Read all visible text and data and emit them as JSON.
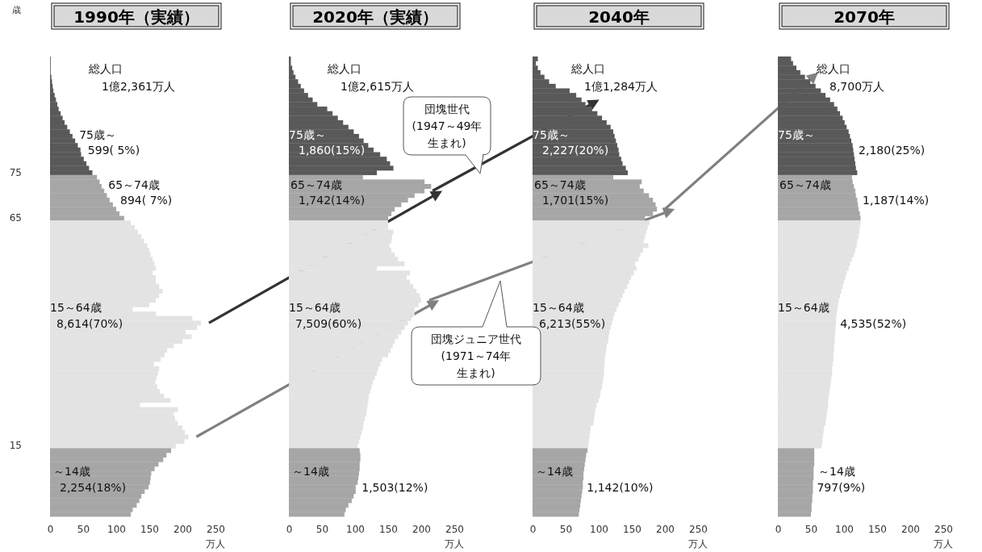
{
  "chart_data": [
    {
      "type": "bar",
      "orientation": "horizontal",
      "title": "1990年（実績）",
      "ylabel": "歳",
      "xlabel": "万人",
      "xlim": [
        0,
        250
      ],
      "xticks": [
        0,
        50,
        100,
        150,
        200,
        250
      ],
      "categories": [
        null,
        null,
        null,
        null,
        null,
        null,
        null,
        null,
        null,
        null,
        null,
        null,
        null,
        null,
        null,
        null,
        null,
        null,
        null,
        null,
        null,
        null,
        null,
        null,
        null,
        "75",
        null,
        null,
        null,
        null,
        null,
        null,
        null,
        null,
        null,
        "65",
        null,
        null,
        null,
        null,
        null,
        null,
        null,
        null,
        null,
        null,
        null,
        null,
        null,
        null,
        null,
        null,
        null,
        null,
        null,
        null,
        null,
        null,
        null,
        null,
        null,
        null,
        null,
        null,
        null,
        null,
        null,
        null,
        null,
        null,
        null,
        null,
        null,
        null,
        null,
        null,
        null,
        null,
        null,
        null,
        null,
        null,
        null,
        null,
        null,
        "15",
        null,
        null,
        null,
        null,
        null,
        null,
        null,
        null,
        null,
        null,
        null,
        null,
        null,
        null,
        null
      ],
      "values": [
        1,
        1,
        1,
        1,
        2,
        3,
        4,
        5,
        7,
        9,
        11,
        13,
        16,
        19,
        22,
        26,
        30,
        34,
        38,
        42,
        46,
        47,
        51,
        55,
        59,
        64,
        71,
        75,
        78,
        82,
        86,
        90,
        95,
        100,
        105,
        112,
        122,
        128,
        133,
        138,
        142,
        147,
        150,
        152,
        155,
        158,
        160,
        155,
        160,
        160,
        165,
        170,
        165,
        160,
        150,
        125,
        160,
        215,
        228,
        222,
        205,
        214,
        200,
        187,
        177,
        173,
        167,
        157,
        165,
        163,
        161,
        159,
        162,
        166,
        172,
        182,
        136,
        193,
        187,
        189,
        193,
        200,
        204,
        209,
        203,
        190,
        183,
        176,
        171,
        164,
        158,
        153,
        152,
        151,
        149,
        143,
        138,
        135,
        131,
        125,
        122
      ],
      "colors": [
        "#595959",
        "#595959",
        "#595959",
        "#595959",
        "#595959",
        "#595959",
        "#595959",
        "#595959",
        "#595959",
        "#595959",
        "#595959",
        "#595959",
        "#595959",
        "#595959",
        "#595959",
        "#595959",
        "#595959",
        "#595959",
        "#595959",
        "#595959",
        "#595959",
        "#595959",
        "#595959",
        "#595959",
        "#595959",
        "#595959",
        "#a6a6a6",
        "#a6a6a6",
        "#a6a6a6",
        "#a6a6a6",
        "#a6a6a6",
        "#a6a6a6",
        "#a6a6a6",
        "#a6a6a6",
        "#a6a6a6",
        "#a6a6a6",
        "#e3e3e3",
        "#e3e3e3",
        "#e3e3e3",
        "#e3e3e3",
        "#e3e3e3",
        "#e3e3e3",
        "#e3e3e3",
        "#e3e3e3",
        "#e3e3e3",
        "#e3e3e3",
        "#e3e3e3",
        "#e3e3e3",
        "#e3e3e3",
        "#e3e3e3",
        "#e3e3e3",
        "#e3e3e3",
        "#e3e3e3",
        "#e3e3e3",
        "#e3e3e3",
        "#e3e3e3",
        "#e3e3e3",
        "#e3e3e3",
        "#e3e3e3",
        "#e3e3e3",
        "#e3e3e3",
        "#e3e3e3",
        "#e3e3e3",
        "#e3e3e3",
        "#e3e3e3",
        "#e3e3e3",
        "#e3e3e3",
        "#e3e3e3",
        "#e3e3e3",
        "#e3e3e3",
        "#e3e3e3",
        "#e3e3e3",
        "#e3e3e3",
        "#e3e3e3",
        "#e3e3e3",
        "#e3e3e3",
        "#e3e3e3",
        "#e3e3e3",
        "#e3e3e3",
        "#e3e3e3",
        "#e3e3e3",
        "#e3e3e3",
        "#e3e3e3",
        "#e3e3e3",
        "#e3e3e3",
        "#e3e3e3",
        "#a6a6a6",
        "#a6a6a6",
        "#a6a6a6",
        "#a6a6a6",
        "#a6a6a6",
        "#a6a6a6",
        "#a6a6a6",
        "#a6a6a6",
        "#a6a6a6",
        "#a6a6a6",
        "#a6a6a6",
        "#a6a6a6",
        "#a6a6a6",
        "#a6a6a6",
        "#a6a6a6"
      ],
      "annotations": [
        "総人口",
        "1億2,361万人",
        "75歳～",
        "599( 5%)",
        "65～74歳",
        "894( 7%)",
        "15～64歳",
        "8,614(70%)",
        "～14歳",
        "2,254(18%)"
      ]
    },
    {
      "type": "bar",
      "orientation": "horizontal",
      "title": "2020年（実績）",
      "xlabel": "万人",
      "xlim": [
        0,
        250
      ],
      "xticks": [
        0,
        50,
        100,
        150,
        200,
        250
      ],
      "tick_labels": "x",
      "categories": [
        null,
        null,
        null,
        null,
        null,
        null,
        null,
        null,
        null,
        null,
        null,
        null,
        null,
        null,
        null,
        null,
        null,
        null,
        null,
        null,
        null,
        null,
        null,
        null,
        null,
        null,
        null,
        null,
        null,
        null,
        null,
        null,
        null,
        null,
        null,
        null,
        null,
        null,
        null,
        null,
        null,
        null,
        null,
        null,
        null,
        null,
        null,
        null,
        null,
        null,
        null,
        null,
        null,
        null,
        null,
        null,
        null,
        null,
        null,
        null,
        null,
        null,
        null,
        null,
        null,
        null,
        null,
        null,
        null,
        null,
        null,
        null,
        null,
        null,
        null,
        null,
        null,
        null,
        null,
        null,
        null,
        null,
        null,
        null,
        null,
        null,
        null,
        null,
        null,
        null,
        null,
        null,
        null,
        null,
        null,
        null,
        null,
        null,
        null,
        null,
        null
      ],
      "values": [
        3,
        3,
        5,
        7,
        10,
        14,
        18,
        23,
        29,
        36,
        43,
        58,
        66,
        74,
        82,
        90,
        98,
        106,
        113,
        120,
        128,
        138,
        148,
        153,
        158,
        133,
        112,
        205,
        215,
        205,
        190,
        180,
        170,
        160,
        155,
        150,
        150,
        150,
        158,
        156,
        155,
        152,
        155,
        160,
        165,
        175,
        133,
        183,
        178,
        183,
        188,
        193,
        198,
        200,
        196,
        190,
        190,
        185,
        180,
        175,
        170,
        165,
        160,
        157,
        154,
        150,
        141,
        138,
        135,
        133,
        130,
        127,
        125,
        123,
        121,
        120,
        119,
        118,
        117,
        115,
        113,
        112,
        110,
        108,
        106,
        104,
        107,
        108,
        108,
        107,
        107,
        106,
        105,
        104,
        101,
        101,
        98,
        95,
        90,
        86,
        84
      ],
      "colors": [
        "#595959",
        "#595959",
        "#595959",
        "#595959",
        "#595959",
        "#595959",
        "#595959",
        "#595959",
        "#595959",
        "#595959",
        "#595959",
        "#595959",
        "#595959",
        "#595959",
        "#595959",
        "#595959",
        "#595959",
        "#595959",
        "#595959",
        "#595959",
        "#595959",
        "#595959",
        "#595959",
        "#595959",
        "#595959",
        "#595959",
        "#a6a6a6",
        "#a6a6a6",
        "#a6a6a6",
        "#a6a6a6",
        "#a6a6a6",
        "#a6a6a6",
        "#a6a6a6",
        "#a6a6a6",
        "#a6a6a6",
        "#a6a6a6",
        "#e3e3e3",
        "#e3e3e3",
        "#e3e3e3",
        "#e3e3e3",
        "#e3e3e3",
        "#e3e3e3",
        "#e3e3e3",
        "#e3e3e3",
        "#e3e3e3",
        "#e3e3e3",
        "#e3e3e3",
        "#e3e3e3",
        "#e3e3e3",
        "#e3e3e3",
        "#e3e3e3",
        "#e3e3e3",
        "#e3e3e3",
        "#e3e3e3",
        "#e3e3e3",
        "#e3e3e3",
        "#e3e3e3",
        "#e3e3e3",
        "#e3e3e3",
        "#e3e3e3",
        "#e3e3e3",
        "#e3e3e3",
        "#e3e3e3",
        "#e3e3e3",
        "#e3e3e3",
        "#e3e3e3",
        "#e3e3e3",
        "#e3e3e3",
        "#e3e3e3",
        "#e3e3e3",
        "#e3e3e3",
        "#e3e3e3",
        "#e3e3e3",
        "#e3e3e3",
        "#e3e3e3",
        "#e3e3e3",
        "#e3e3e3",
        "#e3e3e3",
        "#e3e3e3",
        "#e3e3e3",
        "#e3e3e3",
        "#e3e3e3",
        "#e3e3e3",
        "#e3e3e3",
        "#e3e3e3",
        "#e3e3e3",
        "#a6a6a6",
        "#a6a6a6",
        "#a6a6a6",
        "#a6a6a6",
        "#a6a6a6",
        "#a6a6a6",
        "#a6a6a6",
        "#a6a6a6",
        "#a6a6a6",
        "#a6a6a6",
        "#a6a6a6",
        "#a6a6a6",
        "#a6a6a6",
        "#a6a6a6",
        "#a6a6a6"
      ],
      "annotations": [
        "総人口",
        "1億2,615万人",
        "75歳～",
        "1,860(15%)",
        "65～74歳",
        "1,742(14%)",
        "15～64歳",
        "7,509(60%)",
        "～14歳",
        "1,503(12%)",
        "団塊世代",
        "(1947～49年",
        "生まれ)"
      ]
    },
    {
      "type": "bar",
      "orientation": "horizontal",
      "title": "2040年",
      "xlabel": "万人",
      "xlim": [
        0,
        250
      ],
      "xticks": [
        0,
        50,
        100,
        150,
        200,
        250
      ],
      "tick_labels": "x",
      "categories": [
        null,
        null,
        null,
        null,
        null,
        null,
        null,
        null,
        null,
        null,
        null,
        null,
        null,
        null,
        null,
        null,
        null,
        null,
        null,
        null,
        null,
        null,
        null,
        null,
        null,
        null,
        null,
        null,
        null,
        null,
        null,
        null,
        null,
        null,
        null,
        null,
        null,
        null,
        null,
        null,
        null,
        null,
        null,
        null,
        null,
        null,
        null,
        null,
        null,
        null,
        null,
        null,
        null,
        null,
        null,
        null,
        null,
        null,
        null,
        null,
        null,
        null,
        null,
        null,
        null,
        null,
        null,
        null,
        null,
        null,
        null,
        null,
        null,
        null,
        null,
        null,
        null,
        null,
        null,
        null,
        null,
        null,
        null,
        null,
        null,
        null,
        null,
        null,
        null,
        null,
        null,
        null,
        null,
        null,
        null,
        null,
        null,
        null,
        null,
        null,
        null
      ],
      "values": [
        8,
        5,
        8,
        12,
        18,
        25,
        35,
        56,
        66,
        74,
        80,
        90,
        98,
        105,
        112,
        118,
        122,
        124,
        126,
        128,
        130,
        131,
        134,
        136,
        141,
        144,
        122,
        165,
        162,
        168,
        176,
        182,
        186,
        188,
        182,
        170,
        177,
        174,
        172,
        170,
        168,
        175,
        167,
        163,
        160,
        155,
        157,
        153,
        149,
        146,
        143,
        139,
        136,
        133,
        130,
        127,
        124,
        122,
        120,
        118,
        116,
        115,
        114,
        112,
        111,
        110,
        109,
        109,
        108,
        108,
        107,
        106,
        105,
        103,
        102,
        100,
        97,
        95,
        94,
        93,
        92,
        88,
        87,
        86,
        85,
        84,
        83,
        81,
        80,
        79,
        78,
        77,
        77,
        76,
        76,
        75,
        74,
        73,
        72,
        71,
        70
      ],
      "colors": [
        "#595959",
        "#595959",
        "#595959",
        "#595959",
        "#595959",
        "#595959",
        "#595959",
        "#595959",
        "#595959",
        "#595959",
        "#595959",
        "#595959",
        "#595959",
        "#595959",
        "#595959",
        "#595959",
        "#595959",
        "#595959",
        "#595959",
        "#595959",
        "#595959",
        "#595959",
        "#595959",
        "#595959",
        "#595959",
        "#595959",
        "#a6a6a6",
        "#a6a6a6",
        "#a6a6a6",
        "#a6a6a6",
        "#a6a6a6",
        "#a6a6a6",
        "#a6a6a6",
        "#a6a6a6",
        "#a6a6a6",
        "#a6a6a6",
        "#e3e3e3",
        "#e3e3e3",
        "#e3e3e3",
        "#e3e3e3",
        "#e3e3e3",
        "#e3e3e3",
        "#e3e3e3",
        "#e3e3e3",
        "#e3e3e3",
        "#e3e3e3",
        "#e3e3e3",
        "#e3e3e3",
        "#e3e3e3",
        "#e3e3e3",
        "#e3e3e3",
        "#e3e3e3",
        "#e3e3e3",
        "#e3e3e3",
        "#e3e3e3",
        "#e3e3e3",
        "#e3e3e3",
        "#e3e3e3",
        "#e3e3e3",
        "#e3e3e3",
        "#e3e3e3",
        "#e3e3e3",
        "#e3e3e3",
        "#e3e3e3",
        "#e3e3e3",
        "#e3e3e3",
        "#e3e3e3",
        "#e3e3e3",
        "#e3e3e3",
        "#e3e3e3",
        "#e3e3e3",
        "#e3e3e3",
        "#e3e3e3",
        "#e3e3e3",
        "#e3e3e3",
        "#e3e3e3",
        "#e3e3e3",
        "#e3e3e3",
        "#e3e3e3",
        "#e3e3e3",
        "#e3e3e3",
        "#e3e3e3",
        "#e3e3e3",
        "#e3e3e3",
        "#e3e3e3",
        "#e3e3e3",
        "#a6a6a6",
        "#a6a6a6",
        "#a6a6a6",
        "#a6a6a6",
        "#a6a6a6",
        "#a6a6a6",
        "#a6a6a6",
        "#a6a6a6",
        "#a6a6a6",
        "#a6a6a6",
        "#a6a6a6",
        "#a6a6a6",
        "#a6a6a6",
        "#a6a6a6",
        "#a6a6a6"
      ],
      "annotations": [
        "総人口",
        "1億1,284万人",
        "75歳～",
        "2,227(20%)",
        "65～74歳",
        "1,701(15%)",
        "15～64歳",
        "6,213(55%)",
        "～14歳",
        "1,142(10%)",
        "団塊ジュニア世代",
        "(1971～74年",
        "生まれ)"
      ]
    },
    {
      "type": "bar",
      "orientation": "horizontal",
      "title": "2070年",
      "xlabel": "万人",
      "xlim": [
        0,
        250
      ],
      "xticks": [
        0,
        50,
        100,
        150,
        200,
        250
      ],
      "tick_labels": "x",
      "categories": [
        null,
        null,
        null,
        null,
        null,
        null,
        null,
        null,
        null,
        null,
        null,
        null,
        null,
        null,
        null,
        null,
        null,
        null,
        null,
        null,
        null,
        null,
        null,
        null,
        null,
        null,
        null,
        null,
        null,
        null,
        null,
        null,
        null,
        null,
        null,
        null,
        null,
        null,
        null,
        null,
        null,
        null,
        null,
        null,
        null,
        null,
        null,
        null,
        null,
        null,
        null,
        null,
        null,
        null,
        null,
        null,
        null,
        null,
        null,
        null,
        null,
        null,
        null,
        null,
        null,
        null,
        null,
        null,
        null,
        null,
        null,
        null,
        null,
        null,
        null,
        null,
        null,
        null,
        null,
        null,
        null,
        null,
        null,
        null,
        null,
        null,
        null,
        null,
        null,
        null,
        null,
        null,
        null,
        null,
        null,
        null,
        null,
        null,
        null,
        null,
        null
      ],
      "values": [
        20,
        23,
        28,
        34,
        41,
        49,
        57,
        65,
        72,
        79,
        85,
        90,
        94,
        98,
        101,
        104,
        107,
        109,
        111,
        113,
        114,
        115,
        116,
        117,
        118,
        120,
        112,
        113,
        115,
        117,
        118,
        120,
        121,
        122,
        124,
        125,
        125,
        124,
        123,
        122,
        120,
        119,
        117,
        115,
        112,
        109,
        107,
        104,
        102,
        100,
        98,
        96,
        94,
        92,
        91,
        90,
        89,
        88,
        88,
        87,
        87,
        86,
        86,
        85,
        85,
        84,
        84,
        83,
        82,
        82,
        81,
        80,
        79,
        78,
        77,
        76,
        76,
        75,
        74,
        73,
        72,
        70,
        69,
        68,
        67,
        66,
        55,
        55,
        55,
        55,
        54,
        54,
        54,
        53,
        53,
        53,
        52,
        52,
        51,
        51,
        50
      ],
      "colors": [
        "#595959",
        "#595959",
        "#595959",
        "#595959",
        "#595959",
        "#595959",
        "#595959",
        "#595959",
        "#595959",
        "#595959",
        "#595959",
        "#595959",
        "#595959",
        "#595959",
        "#595959",
        "#595959",
        "#595959",
        "#595959",
        "#595959",
        "#595959",
        "#595959",
        "#595959",
        "#595959",
        "#595959",
        "#595959",
        "#595959",
        "#a6a6a6",
        "#a6a6a6",
        "#a6a6a6",
        "#a6a6a6",
        "#a6a6a6",
        "#a6a6a6",
        "#a6a6a6",
        "#a6a6a6",
        "#a6a6a6",
        "#a6a6a6",
        "#e3e3e3",
        "#e3e3e3",
        "#e3e3e3",
        "#e3e3e3",
        "#e3e3e3",
        "#e3e3e3",
        "#e3e3e3",
        "#e3e3e3",
        "#e3e3e3",
        "#e3e3e3",
        "#e3e3e3",
        "#e3e3e3",
        "#e3e3e3",
        "#e3e3e3",
        "#e3e3e3",
        "#e3e3e3",
        "#e3e3e3",
        "#e3e3e3",
        "#e3e3e3",
        "#e3e3e3",
        "#e3e3e3",
        "#e3e3e3",
        "#e3e3e3",
        "#e3e3e3",
        "#e3e3e3",
        "#e3e3e3",
        "#e3e3e3",
        "#e3e3e3",
        "#e3e3e3",
        "#e3e3e3",
        "#e3e3e3",
        "#e3e3e3",
        "#e3e3e3",
        "#e3e3e3",
        "#e3e3e3",
        "#e3e3e3",
        "#e3e3e3",
        "#e3e3e3",
        "#e3e3e3",
        "#e3e3e3",
        "#e3e3e3",
        "#e3e3e3",
        "#e3e3e3",
        "#e3e3e3",
        "#e3e3e3",
        "#e3e3e3",
        "#e3e3e3",
        "#e3e3e3",
        "#e3e3e3",
        "#e3e3e3",
        "#a6a6a6",
        "#a6a6a6",
        "#a6a6a6",
        "#a6a6a6",
        "#a6a6a6",
        "#a6a6a6",
        "#a6a6a6",
        "#a6a6a6",
        "#a6a6a6",
        "#a6a6a6",
        "#a6a6a6",
        "#a6a6a6",
        "#a6a6a6",
        "#a6a6a6",
        "#a6a6a6"
      ],
      "annotations": [
        "総人口",
        "8,700万人",
        "75歳～",
        "2,180(25%)",
        "65～74歳",
        "1,187(14%)",
        "15～64歳",
        "4,535(52%)",
        "～14歳",
        "797(9%)"
      ]
    }
  ]
}
